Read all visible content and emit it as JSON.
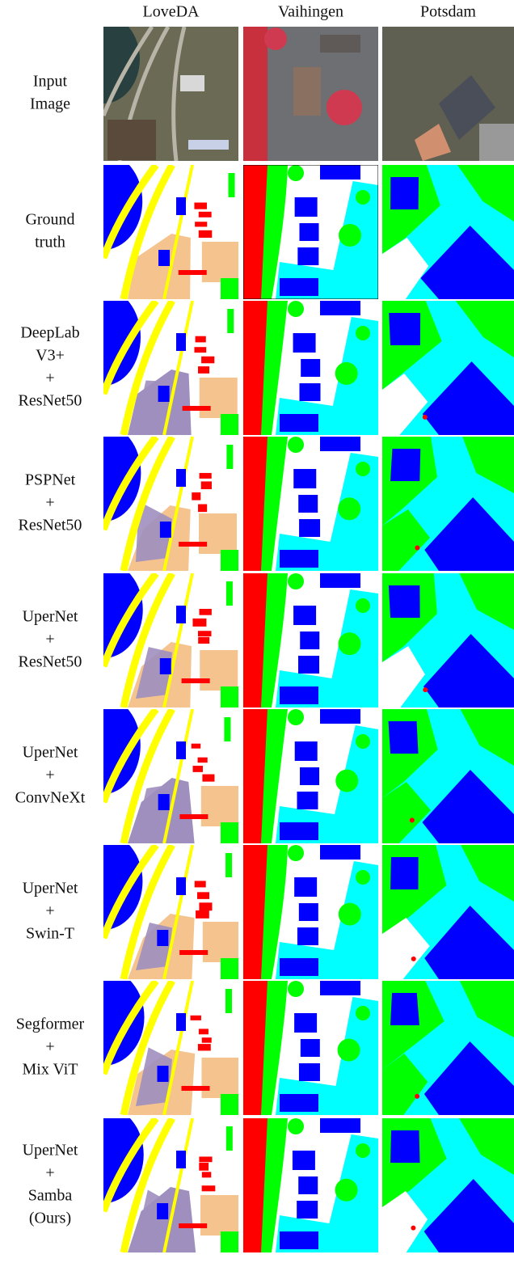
{
  "header": {
    "columns": [
      "LoveDA",
      "Vaihingen",
      "Potsdam"
    ]
  },
  "rows": [
    {
      "label": [
        "Input",
        "Image"
      ]
    },
    {
      "label": [
        "Ground",
        "truth"
      ]
    },
    {
      "label": [
        "DeepLab",
        "V3+",
        "+",
        "ResNet50"
      ]
    },
    {
      "label": [
        "PSPNet",
        "+",
        "ResNet50"
      ]
    },
    {
      "label": [
        "UperNet",
        "+",
        "ResNet50"
      ]
    },
    {
      "label": [
        "UperNet",
        "+",
        "ConvNeXt"
      ]
    },
    {
      "label": [
        "UperNet",
        "+",
        "Swin-T"
      ]
    },
    {
      "label": [
        "Segformer",
        "+",
        "Mix ViT"
      ]
    },
    {
      "label": [
        "UperNet",
        "+",
        "Samba",
        "(Ours)"
      ]
    }
  ]
}
